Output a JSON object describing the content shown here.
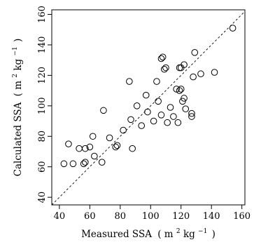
{
  "chart_data": {
    "type": "scatter",
    "title": "",
    "xlabel": {
      "main": "Measured SSA",
      "unit_open": "( m",
      "unit_sup1": "2",
      "unit_mid": " kg",
      "unit_sup2": "−1",
      "unit_close": ")"
    },
    "ylabel": {
      "main": "Calculated SSA",
      "unit_open": "( m",
      "unit_sup1": "2",
      "unit_mid": " kg",
      "unit_sup2": "−1",
      "unit_close": ")"
    },
    "xlim": [
      35,
      162
    ],
    "ylim": [
      35,
      163
    ],
    "xticks": [
      40,
      60,
      80,
      100,
      120,
      140,
      160
    ],
    "yticks": [
      40,
      60,
      80,
      100,
      120,
      140,
      160
    ],
    "reference_line": {
      "style": "dashed",
      "slope": 1,
      "intercept": 0
    },
    "grid": false,
    "marker": "open-circle",
    "points": [
      {
        "x": 43,
        "y": 62
      },
      {
        "x": 46,
        "y": 75
      },
      {
        "x": 49,
        "y": 62
      },
      {
        "x": 53,
        "y": 72
      },
      {
        "x": 56,
        "y": 62
      },
      {
        "x": 57,
        "y": 63
      },
      {
        "x": 57,
        "y": 72
      },
      {
        "x": 60,
        "y": 73
      },
      {
        "x": 62,
        "y": 80
      },
      {
        "x": 63,
        "y": 67
      },
      {
        "x": 68,
        "y": 63
      },
      {
        "x": 69,
        "y": 97
      },
      {
        "x": 73,
        "y": 79
      },
      {
        "x": 77,
        "y": 73
      },
      {
        "x": 78,
        "y": 74
      },
      {
        "x": 82,
        "y": 84
      },
      {
        "x": 86,
        "y": 116
      },
      {
        "x": 87,
        "y": 91
      },
      {
        "x": 88,
        "y": 72
      },
      {
        "x": 91,
        "y": 100
      },
      {
        "x": 94,
        "y": 87
      },
      {
        "x": 97,
        "y": 107
      },
      {
        "x": 98,
        "y": 96
      },
      {
        "x": 102,
        "y": 90
      },
      {
        "x": 104,
        "y": 116
      },
      {
        "x": 105,
        "y": 103
      },
      {
        "x": 107,
        "y": 94
      },
      {
        "x": 107,
        "y": 131
      },
      {
        "x": 108,
        "y": 132
      },
      {
        "x": 109,
        "y": 124
      },
      {
        "x": 110,
        "y": 125
      },
      {
        "x": 111,
        "y": 89
      },
      {
        "x": 113,
        "y": 99
      },
      {
        "x": 115,
        "y": 93
      },
      {
        "x": 117,
        "y": 111
      },
      {
        "x": 118,
        "y": 89
      },
      {
        "x": 119,
        "y": 125
      },
      {
        "x": 119,
        "y": 110
      },
      {
        "x": 120,
        "y": 111
      },
      {
        "x": 120,
        "y": 125
      },
      {
        "x": 121,
        "y": 103
      },
      {
        "x": 122,
        "y": 127
      },
      {
        "x": 122,
        "y": 105
      },
      {
        "x": 123,
        "y": 98
      },
      {
        "x": 127,
        "y": 95
      },
      {
        "x": 127,
        "y": 93
      },
      {
        "x": 128,
        "y": 119
      },
      {
        "x": 129,
        "y": 135
      },
      {
        "x": 133,
        "y": 121
      },
      {
        "x": 142,
        "y": 122
      },
      {
        "x": 154,
        "y": 151
      }
    ]
  }
}
